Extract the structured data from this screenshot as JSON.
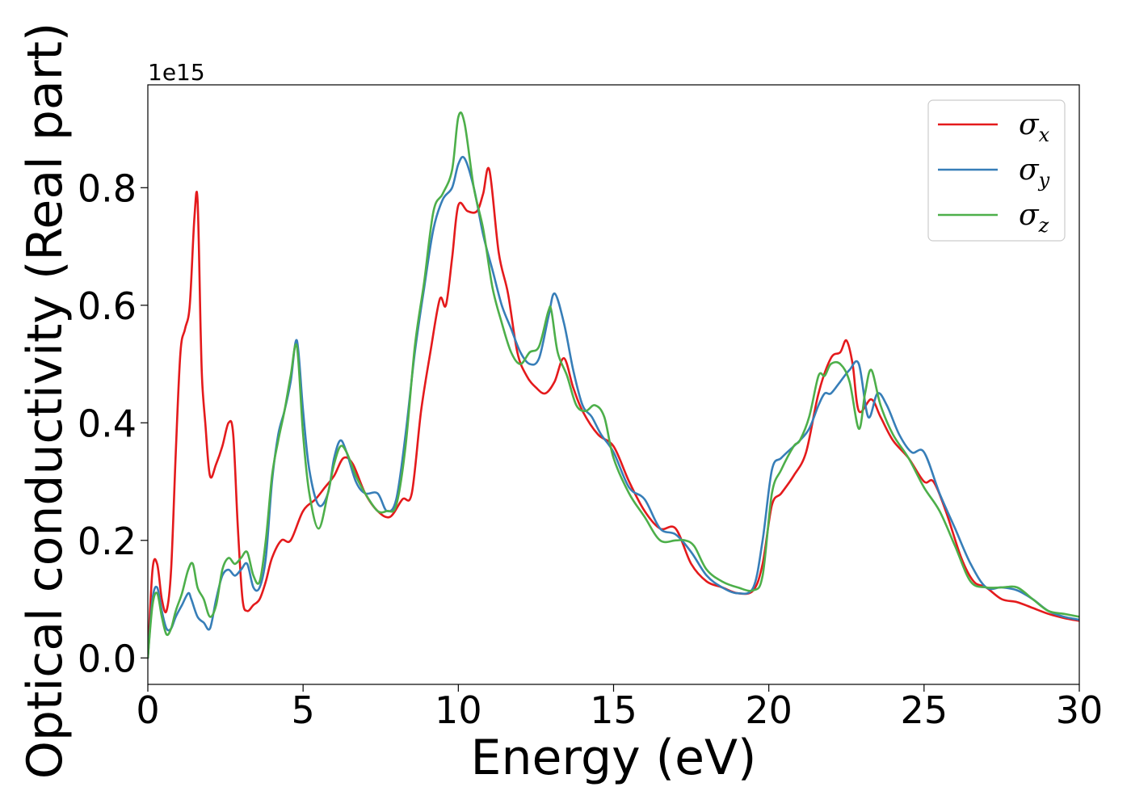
{
  "chart_data": {
    "type": "line",
    "xlabel": "Energy (eV)",
    "ylabel": "Optical conductivity (Real part)",
    "y_offset_label": "1e15",
    "xlim": [
      0,
      30
    ],
    "ylim": [
      -0.045,
      0.975
    ],
    "x_ticks": [
      0,
      5,
      10,
      15,
      20,
      25,
      30
    ],
    "x_tick_labels": [
      "0",
      "5",
      "10",
      "15",
      "20",
      "25",
      "30"
    ],
    "y_ticks": [
      0.0,
      0.2,
      0.4,
      0.6,
      0.8
    ],
    "y_tick_labels": [
      "0.0",
      "0.2",
      "0.4",
      "0.6",
      "0.8"
    ],
    "grid": false,
    "legend_position": "top-right",
    "series": [
      {
        "name": "σ",
        "subscript": "x",
        "color": "#e41a1c",
        "x": [
          0,
          0.15,
          0.3,
          0.45,
          0.6,
          0.75,
          0.9,
          1.05,
          1.2,
          1.35,
          1.5,
          1.6,
          1.7,
          1.75,
          1.85,
          2.0,
          2.2,
          2.4,
          2.6,
          2.75,
          2.9,
          3.05,
          3.2,
          3.4,
          3.6,
          3.8,
          4.0,
          4.3,
          4.6,
          5.0,
          5.4,
          5.7,
          6.0,
          6.3,
          6.6,
          7.0,
          7.4,
          7.8,
          8.2,
          8.5,
          8.8,
          9.1,
          9.4,
          9.6,
          9.8,
          10.0,
          10.3,
          10.6,
          10.8,
          11.0,
          11.3,
          11.6,
          11.9,
          12.2,
          12.5,
          12.8,
          13.1,
          13.4,
          13.7,
          14.0,
          14.5,
          15.0,
          15.5,
          16.0,
          16.5,
          17.0,
          17.5,
          18.0,
          18.5,
          19.0,
          19.5,
          19.8,
          20.1,
          20.4,
          20.8,
          21.2,
          21.6,
          22.0,
          22.3,
          22.5,
          22.7,
          22.9,
          23.3,
          23.6,
          24.0,
          24.5,
          25.0,
          25.3,
          25.7,
          26.2,
          26.6,
          27.0,
          27.5,
          28.0,
          28.5,
          29.0,
          29.5,
          30.0
        ],
        "values": [
          0.0,
          0.15,
          0.16,
          0.1,
          0.08,
          0.15,
          0.35,
          0.52,
          0.56,
          0.6,
          0.75,
          0.78,
          0.56,
          0.47,
          0.4,
          0.31,
          0.33,
          0.36,
          0.4,
          0.38,
          0.22,
          0.1,
          0.08,
          0.09,
          0.1,
          0.13,
          0.17,
          0.2,
          0.2,
          0.25,
          0.27,
          0.29,
          0.31,
          0.34,
          0.33,
          0.28,
          0.25,
          0.24,
          0.27,
          0.28,
          0.42,
          0.52,
          0.61,
          0.6,
          0.68,
          0.77,
          0.76,
          0.76,
          0.79,
          0.83,
          0.69,
          0.62,
          0.52,
          0.48,
          0.46,
          0.45,
          0.47,
          0.51,
          0.46,
          0.42,
          0.38,
          0.36,
          0.3,
          0.25,
          0.22,
          0.22,
          0.16,
          0.13,
          0.12,
          0.11,
          0.115,
          0.16,
          0.26,
          0.28,
          0.31,
          0.35,
          0.45,
          0.51,
          0.52,
          0.54,
          0.5,
          0.42,
          0.44,
          0.41,
          0.37,
          0.34,
          0.3,
          0.3,
          0.25,
          0.17,
          0.13,
          0.12,
          0.1,
          0.095,
          0.085,
          0.075,
          0.068,
          0.063
        ]
      },
      {
        "name": "σ",
        "subscript": "y",
        "color": "#377eb8",
        "x": [
          0,
          0.15,
          0.3,
          0.45,
          0.6,
          0.75,
          0.9,
          1.1,
          1.3,
          1.4,
          1.6,
          1.8,
          2.0,
          2.2,
          2.4,
          2.6,
          2.8,
          3.0,
          3.2,
          3.4,
          3.6,
          3.8,
          4.0,
          4.2,
          4.4,
          4.6,
          4.8,
          5.0,
          5.2,
          5.5,
          5.8,
          6.0,
          6.2,
          6.4,
          6.7,
          7.0,
          7.4,
          7.7,
          8.0,
          8.3,
          8.6,
          8.9,
          9.2,
          9.5,
          9.8,
          10.0,
          10.2,
          10.5,
          10.8,
          11.1,
          11.4,
          11.7,
          12.0,
          12.3,
          12.6,
          12.9,
          13.1,
          13.4,
          13.7,
          14.0,
          14.3,
          14.6,
          15.0,
          15.5,
          16.0,
          16.5,
          17.0,
          17.5,
          18.0,
          18.5,
          19.0,
          19.5,
          19.8,
          20.1,
          20.4,
          20.8,
          21.0,
          21.3,
          21.6,
          21.8,
          22.0,
          22.3,
          22.6,
          22.9,
          23.2,
          23.5,
          23.8,
          24.2,
          24.6,
          25.0,
          25.5,
          26.0,
          26.5,
          27.0,
          27.5,
          28.0,
          28.5,
          29.0,
          29.5,
          30.0
        ],
        "values": [
          0.0,
          0.1,
          0.12,
          0.08,
          0.05,
          0.05,
          0.07,
          0.09,
          0.11,
          0.1,
          0.07,
          0.06,
          0.05,
          0.1,
          0.14,
          0.15,
          0.14,
          0.15,
          0.16,
          0.12,
          0.12,
          0.17,
          0.3,
          0.38,
          0.42,
          0.47,
          0.54,
          0.42,
          0.32,
          0.26,
          0.28,
          0.34,
          0.37,
          0.35,
          0.3,
          0.28,
          0.28,
          0.25,
          0.27,
          0.38,
          0.52,
          0.63,
          0.73,
          0.78,
          0.8,
          0.84,
          0.85,
          0.8,
          0.72,
          0.66,
          0.6,
          0.56,
          0.52,
          0.5,
          0.51,
          0.58,
          0.62,
          0.57,
          0.49,
          0.43,
          0.41,
          0.38,
          0.35,
          0.29,
          0.27,
          0.22,
          0.21,
          0.18,
          0.14,
          0.12,
          0.11,
          0.12,
          0.2,
          0.32,
          0.34,
          0.36,
          0.37,
          0.39,
          0.43,
          0.45,
          0.45,
          0.47,
          0.49,
          0.5,
          0.41,
          0.45,
          0.43,
          0.38,
          0.35,
          0.35,
          0.28,
          0.22,
          0.16,
          0.12,
          0.12,
          0.115,
          0.1,
          0.08,
          0.07,
          0.065
        ]
      },
      {
        "name": "σ",
        "subscript": "z",
        "color": "#4daf4a",
        "x": [
          0,
          0.15,
          0.3,
          0.45,
          0.6,
          0.75,
          0.9,
          1.1,
          1.3,
          1.45,
          1.6,
          1.8,
          2.0,
          2.2,
          2.4,
          2.6,
          2.8,
          3.0,
          3.2,
          3.4,
          3.6,
          3.8,
          4.0,
          4.2,
          4.4,
          4.6,
          4.8,
          5.0,
          5.2,
          5.5,
          5.8,
          6.0,
          6.2,
          6.4,
          6.7,
          7.0,
          7.4,
          7.7,
          8.0,
          8.3,
          8.6,
          8.9,
          9.2,
          9.5,
          9.8,
          10.0,
          10.2,
          10.5,
          10.8,
          11.1,
          11.4,
          11.7,
          12.0,
          12.3,
          12.6,
          12.9,
          13.0,
          13.2,
          13.5,
          13.8,
          14.1,
          14.4,
          14.7,
          15.0,
          15.5,
          16.0,
          16.5,
          17.0,
          17.3,
          17.6,
          18.0,
          18.5,
          19.0,
          19.5,
          19.8,
          20.1,
          20.4,
          20.8,
          21.0,
          21.3,
          21.6,
          21.8,
          22.0,
          22.3,
          22.6,
          22.9,
          23.1,
          23.3,
          23.6,
          24.0,
          24.5,
          25.0,
          25.5,
          26.0,
          26.5,
          27.0,
          27.5,
          28.0,
          28.5,
          29.0,
          29.5,
          30.0
        ],
        "values": [
          0.0,
          0.09,
          0.11,
          0.07,
          0.04,
          0.05,
          0.08,
          0.11,
          0.15,
          0.16,
          0.12,
          0.1,
          0.07,
          0.09,
          0.15,
          0.17,
          0.16,
          0.17,
          0.18,
          0.14,
          0.13,
          0.2,
          0.31,
          0.37,
          0.42,
          0.48,
          0.53,
          0.38,
          0.28,
          0.22,
          0.28,
          0.33,
          0.36,
          0.35,
          0.31,
          0.28,
          0.25,
          0.25,
          0.26,
          0.36,
          0.53,
          0.64,
          0.76,
          0.79,
          0.83,
          0.92,
          0.91,
          0.8,
          0.73,
          0.63,
          0.57,
          0.52,
          0.5,
          0.52,
          0.53,
          0.59,
          0.59,
          0.52,
          0.48,
          0.43,
          0.42,
          0.43,
          0.41,
          0.34,
          0.28,
          0.24,
          0.2,
          0.2,
          0.2,
          0.19,
          0.15,
          0.13,
          0.12,
          0.115,
          0.14,
          0.28,
          0.32,
          0.36,
          0.37,
          0.41,
          0.48,
          0.48,
          0.5,
          0.5,
          0.47,
          0.39,
          0.45,
          0.49,
          0.43,
          0.38,
          0.34,
          0.29,
          0.25,
          0.19,
          0.13,
          0.12,
          0.12,
          0.12,
          0.1,
          0.08,
          0.075,
          0.07
        ]
      }
    ]
  }
}
